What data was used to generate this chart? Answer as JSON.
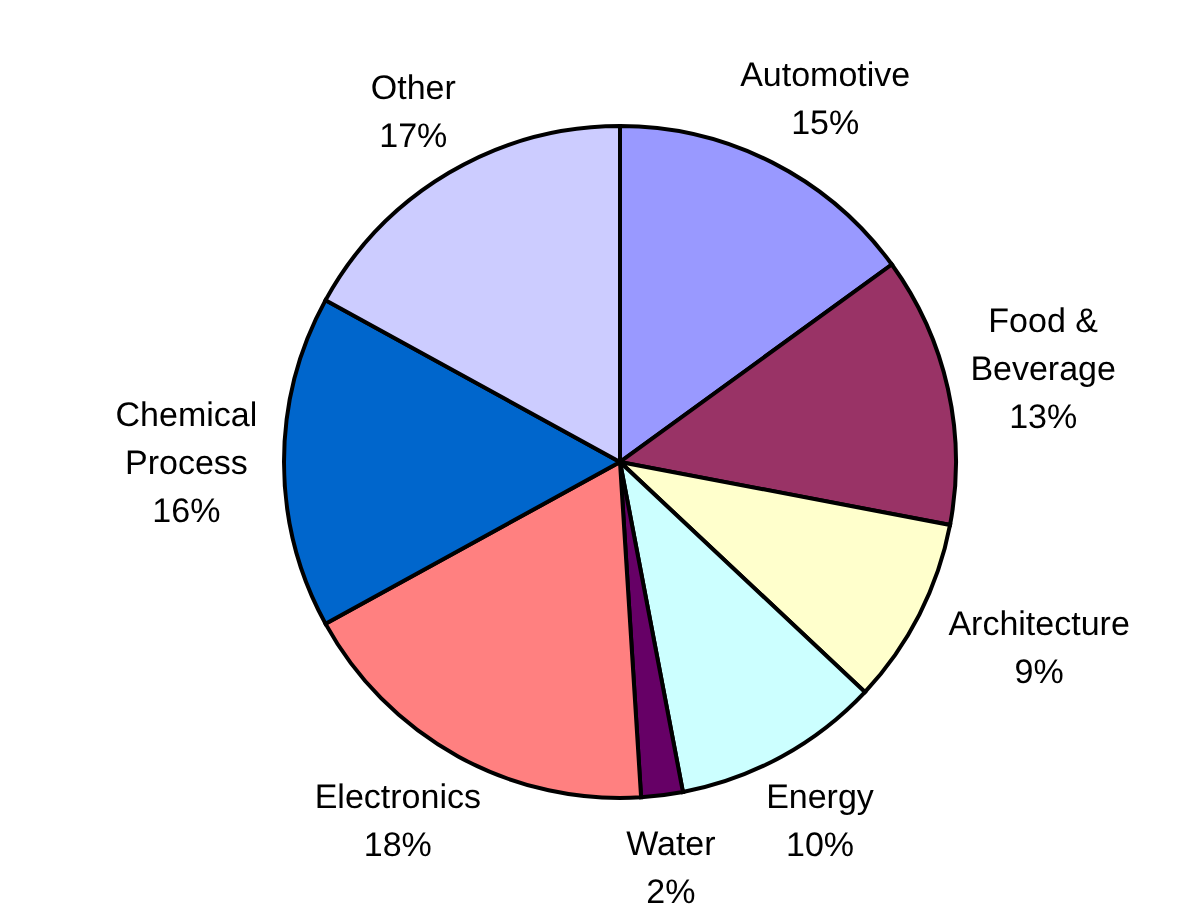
{
  "chart_data": {
    "type": "pie",
    "categories": [
      "Automotive",
      "Food & Beverage",
      "Architecture",
      "Energy",
      "Water",
      "Electronics",
      "Chemical Process",
      "Other"
    ],
    "values": [
      15,
      13,
      9,
      10,
      2,
      18,
      16,
      17
    ],
    "colors": [
      "#9999ff",
      "#993366",
      "#ffffcc",
      "#ccffff",
      "#660066",
      "#ff8080",
      "#0066cc",
      "#ccccff"
    ],
    "value_labels": [
      "15%",
      "13%",
      "9%",
      "10%",
      "2%",
      "18%",
      "16%",
      "17%"
    ],
    "legend": false
  }
}
